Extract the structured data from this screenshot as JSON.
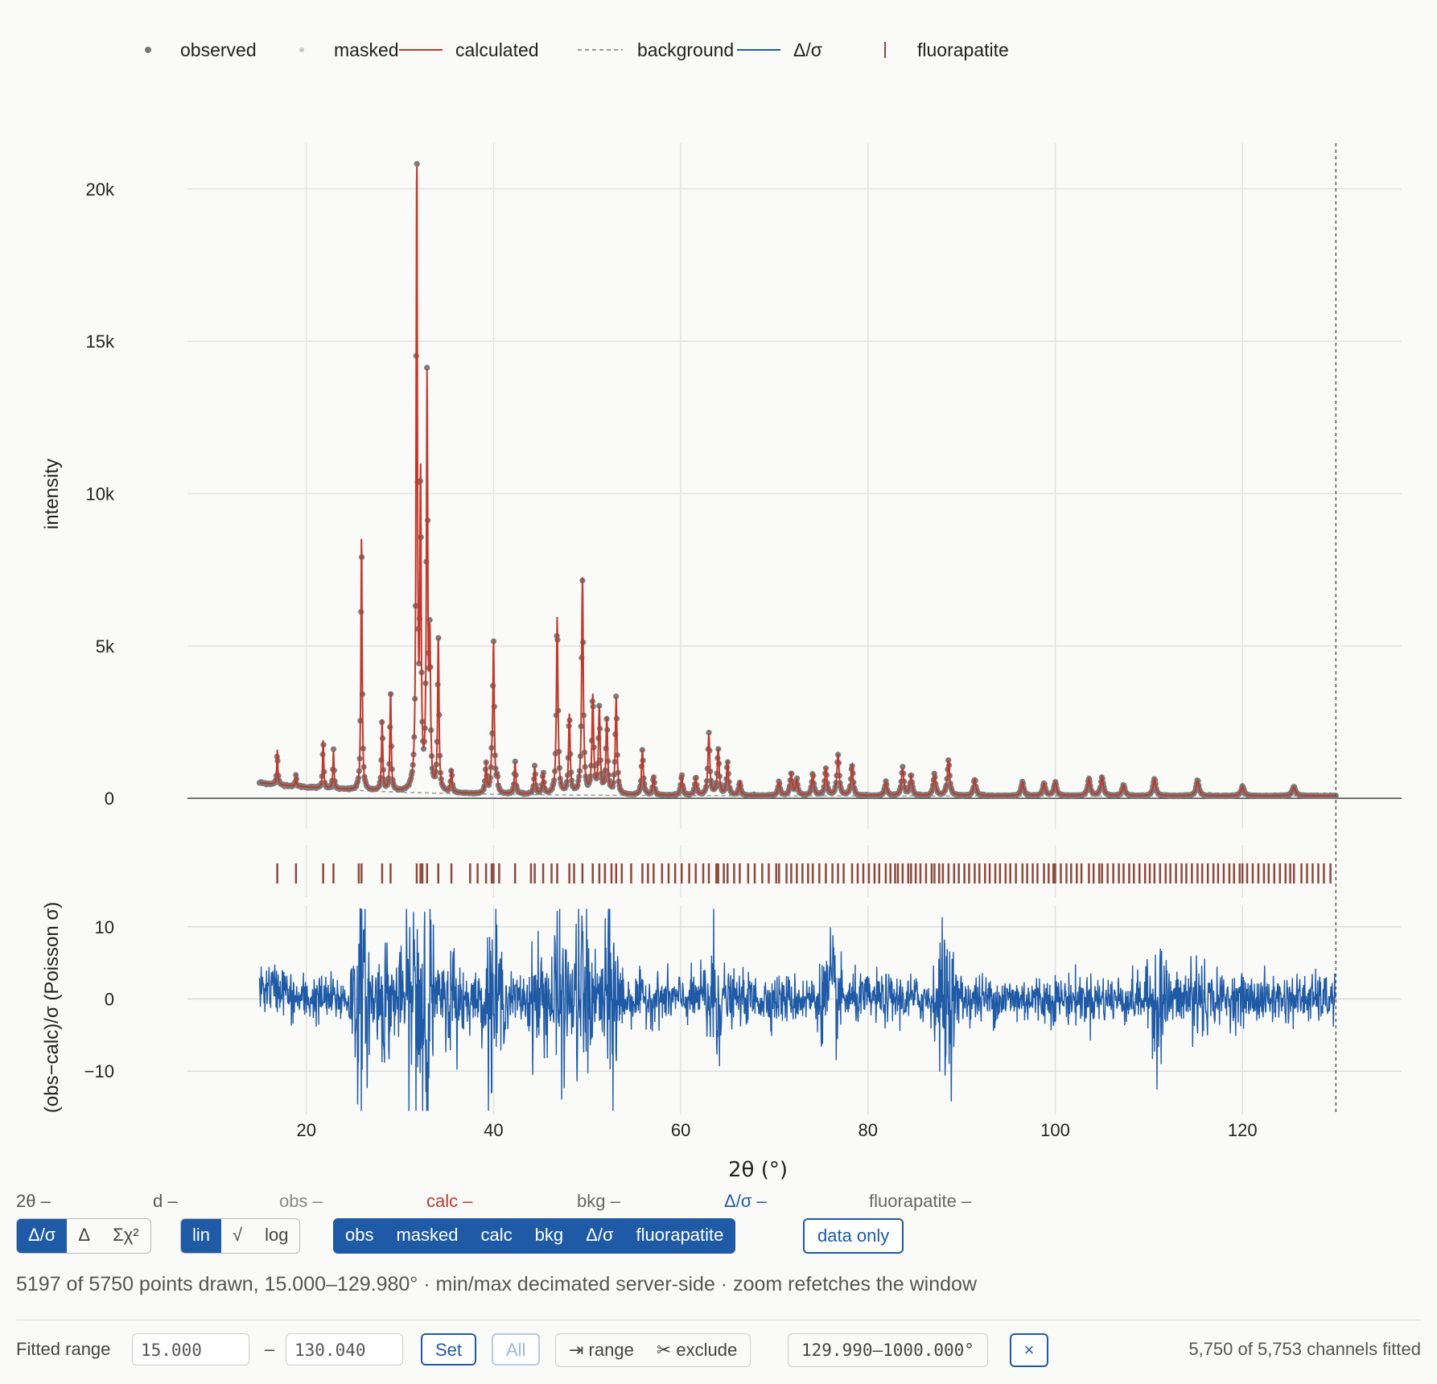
{
  "legend": [
    {
      "key": "observed",
      "label": "observed",
      "color": "#777777",
      "kind": "dot"
    },
    {
      "key": "masked",
      "label": "masked",
      "color": "#c8c8c8",
      "kind": "dot"
    },
    {
      "key": "calculated",
      "label": "calculated",
      "color": "#c0392b",
      "kind": "line"
    },
    {
      "key": "background",
      "label": "background",
      "color": "#999999",
      "kind": "dash"
    },
    {
      "key": "delta",
      "label": "Δ/σ",
      "color": "#1f5aa6",
      "kind": "line"
    },
    {
      "key": "phase",
      "label": "fluorapatite",
      "color": "#8b4a3c",
      "kind": "tick"
    }
  ],
  "chart_data": {
    "type": "line",
    "xlabel": "2θ (°)",
    "ylabel_main": "intensity",
    "ylabel_resid": "(obs−calc)/σ (Poisson σ)",
    "xlim": [
      0,
      137
    ],
    "ylim_main": [
      -1000,
      21500
    ],
    "ylim_resid": [
      -16,
      13
    ],
    "x_ticks": [
      20,
      40,
      60,
      80,
      100,
      120
    ],
    "y_ticks_main": [
      {
        "v": 0,
        "label": "0"
      },
      {
        "v": 5000,
        "label": "5k"
      },
      {
        "v": 10000,
        "label": "10k"
      },
      {
        "v": 15000,
        "label": "15k"
      },
      {
        "v": 20000,
        "label": "20k"
      }
    ],
    "y_ticks_resid": [
      {
        "v": 10,
        "label": "10"
      },
      {
        "v": 0,
        "label": "0"
      },
      {
        "v": -10,
        "label": "−10"
      }
    ],
    "range_end_marker": 129.98,
    "data_range": [
      15.0,
      129.98
    ],
    "peaks": [
      [
        16.9,
        1150
      ],
      [
        18.9,
        380
      ],
      [
        21.8,
        1600
      ],
      [
        22.9,
        1250
      ],
      [
        25.9,
        8500
      ],
      [
        28.1,
        2400
      ],
      [
        29.0,
        3300
      ],
      [
        31.8,
        20800
      ],
      [
        32.2,
        10000
      ],
      [
        32.9,
        13400
      ],
      [
        33.2,
        4600
      ],
      [
        34.1,
        5100
      ],
      [
        35.5,
        750
      ],
      [
        39.2,
        1000
      ],
      [
        39.8,
        700
      ],
      [
        40.0,
        4900
      ],
      [
        40.4,
        400
      ],
      [
        42.3,
        1050
      ],
      [
        44.4,
        900
      ],
      [
        45.3,
        700
      ],
      [
        46.8,
        5800
      ],
      [
        48.1,
        2600
      ],
      [
        49.5,
        7100
      ],
      [
        50.6,
        3200
      ],
      [
        51.3,
        2800
      ],
      [
        52.1,
        2500
      ],
      [
        53.1,
        3200
      ],
      [
        55.9,
        1500
      ],
      [
        57.1,
        600
      ],
      [
        60.1,
        650
      ],
      [
        61.6,
        600
      ],
      [
        63.0,
        2000
      ],
      [
        64.0,
        1500
      ],
      [
        65.0,
        1100
      ],
      [
        66.3,
        450
      ],
      [
        70.5,
        450
      ],
      [
        71.8,
        750
      ],
      [
        72.4,
        500
      ],
      [
        74.1,
        700
      ],
      [
        75.5,
        900
      ],
      [
        76.8,
        1350
      ],
      [
        78.3,
        1000
      ],
      [
        81.9,
        450
      ],
      [
        83.7,
        900
      ],
      [
        84.6,
        650
      ],
      [
        87.1,
        700
      ],
      [
        88.6,
        1150
      ],
      [
        91.4,
        550
      ],
      [
        96.5,
        450
      ],
      [
        98.8,
        400
      ],
      [
        100.0,
        450
      ],
      [
        103.6,
        550
      ],
      [
        105.0,
        600
      ],
      [
        107.3,
        350
      ],
      [
        110.6,
        550
      ],
      [
        115.2,
        500
      ],
      [
        120.0,
        300
      ],
      [
        125.5,
        300
      ]
    ],
    "resid_bursts": [
      [
        25.9,
        6
      ],
      [
        28.5,
        3
      ],
      [
        31.0,
        4
      ],
      [
        32.5,
        12
      ],
      [
        35.8,
        3
      ],
      [
        40.0,
        5
      ],
      [
        44.8,
        3
      ],
      [
        47.0,
        5
      ],
      [
        49.5,
        6
      ],
      [
        52.5,
        7
      ],
      [
        63.5,
        4
      ],
      [
        76.0,
        3
      ],
      [
        88.3,
        4
      ],
      [
        111.0,
        3
      ],
      [
        115.0,
        3
      ]
    ],
    "phase_ticks": [
      16.9,
      18.9,
      21.8,
      22.9,
      25.6,
      25.9,
      28.1,
      29.0,
      31.8,
      32.2,
      32.4,
      32.9,
      34.1,
      35.5,
      37.5,
      38.3,
      39.2,
      39.8,
      40.0,
      40.6,
      42.3,
      44.0,
      44.4,
      45.3,
      46.2,
      46.8,
      48.1,
      48.6,
      49.5,
      50.6,
      51.3,
      51.9,
      52.6,
      53.1,
      53.7,
      54.7,
      55.9,
      56.5,
      57.1,
      58.0,
      58.7,
      59.4,
      60.1,
      60.9,
      61.6,
      62.4,
      63.0,
      63.8,
      64.0,
      64.6,
      65.0,
      65.7,
      66.3,
      67.2,
      67.9,
      68.7,
      69.4,
      70.2,
      70.5,
      71.3,
      71.8,
      72.4,
      73.0,
      73.6,
      74.1,
      74.8,
      75.5,
      76.2,
      76.8,
      77.4,
      78.3,
      78.9,
      79.5,
      80.1,
      80.7,
      81.2,
      81.9,
      82.4,
      82.9,
      83.2,
      83.7,
      84.3,
      84.6,
      85.1,
      85.6,
      86.2,
      86.8,
      87.1,
      87.6,
      88.0,
      88.6,
      89.2,
      89.7,
      90.3,
      90.8,
      91.4,
      91.9,
      92.5,
      93.0,
      93.6,
      94.1,
      94.7,
      95.2,
      95.8,
      96.5,
      97.0,
      97.6,
      98.1,
      98.8,
      99.3,
      99.8,
      100.0,
      100.6,
      101.2,
      101.7,
      102.3,
      102.8,
      103.6,
      104.1,
      104.7,
      105.0,
      105.6,
      106.2,
      106.8,
      107.3,
      107.9,
      108.4,
      109.0,
      109.6,
      110.1,
      110.6,
      111.2,
      111.8,
      112.3,
      112.9,
      113.5,
      114.0,
      114.6,
      115.2,
      115.7,
      116.3,
      116.9,
      117.4,
      118.0,
      118.6,
      119.1,
      119.7,
      120.0,
      120.5,
      121.1,
      121.7,
      122.3,
      122.8,
      123.4,
      124.0,
      124.6,
      125.1,
      125.5,
      126.3,
      126.9,
      127.5,
      128.1,
      128.7,
      129.4
    ]
  },
  "controls": {
    "readouts": [
      {
        "label": "2θ –",
        "color": "#555555"
      },
      {
        "label": "d –",
        "color": "#555555"
      },
      {
        "label": "obs –",
        "color": "#888888"
      },
      {
        "label": "calc –",
        "color": "#c0392b"
      },
      {
        "label": "bkg –",
        "color": "#666666"
      },
      {
        "label": "Δ/σ –",
        "color": "#1f5aa6"
      },
      {
        "label": "fluorapatite –",
        "color": "#666666"
      }
    ],
    "resid_mode": [
      "Δ/σ",
      "Δ",
      "Σχ²"
    ],
    "scale": [
      "lin",
      "√",
      "log"
    ],
    "traces": [
      "obs",
      "masked",
      "calc",
      "bkg",
      "Δ/σ",
      "fluorapatite"
    ],
    "data_only": "data only"
  },
  "status": "5197 of 5750 points drawn, 15.000–129.980° · min/max decimated server-side · zoom refetches the window",
  "fit": {
    "label": "Fitted range",
    "start": "15.000",
    "dash": "–",
    "end": "130.040",
    "set": "Set",
    "all": "All",
    "range": "⇥ range",
    "exclude": "✂ exclude",
    "excluded": "129.990–1000.000°",
    "remove": "×",
    "channels": "5,750 of 5,753 channels fitted"
  }
}
